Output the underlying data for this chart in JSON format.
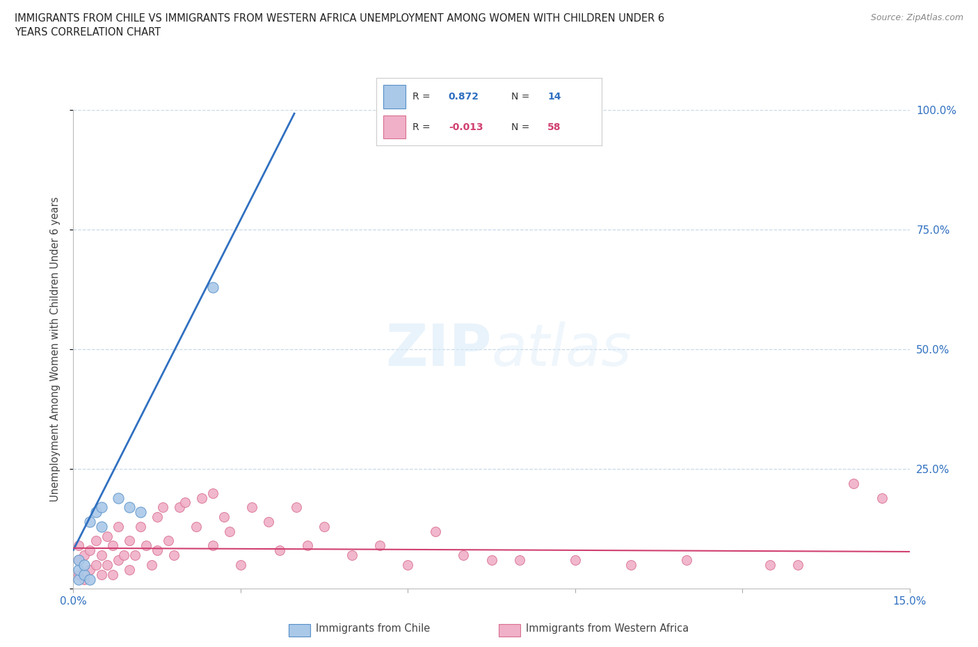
{
  "title_line1": "IMMIGRANTS FROM CHILE VS IMMIGRANTS FROM WESTERN AFRICA UNEMPLOYMENT AMONG WOMEN WITH CHILDREN UNDER 6",
  "title_line2": "YEARS CORRELATION CHART",
  "source": "Source: ZipAtlas.com",
  "ylabel": "Unemployment Among Women with Children Under 6 years",
  "xlim": [
    0.0,
    0.15
  ],
  "ylim": [
    0.0,
    1.0
  ],
  "chile_fill": "#aac8e8",
  "chile_edge": "#5590c8",
  "wa_fill": "#f0b0c8",
  "wa_edge": "#d87090",
  "line_chile": "#3070c0",
  "line_wa": "#d04070",
  "grid_color": "#c8d8e8",
  "legend_R_chile": "0.872",
  "legend_N_chile": "14",
  "legend_R_wa": "-0.013",
  "legend_N_wa": "58",
  "chile_x": [
    0.001,
    0.001,
    0.001,
    0.002,
    0.002,
    0.003,
    0.003,
    0.004,
    0.005,
    0.005,
    0.008,
    0.01,
    0.012,
    0.025
  ],
  "chile_y": [
    0.02,
    0.04,
    0.06,
    0.03,
    0.05,
    0.02,
    0.14,
    0.16,
    0.13,
    0.17,
    0.19,
    0.17,
    0.16,
    0.63
  ],
  "wa_x": [
    0.001,
    0.001,
    0.001,
    0.002,
    0.002,
    0.003,
    0.003,
    0.004,
    0.004,
    0.005,
    0.005,
    0.006,
    0.006,
    0.007,
    0.007,
    0.008,
    0.008,
    0.009,
    0.01,
    0.01,
    0.011,
    0.012,
    0.013,
    0.014,
    0.015,
    0.015,
    0.016,
    0.017,
    0.018,
    0.019,
    0.02,
    0.022,
    0.023,
    0.025,
    0.025,
    0.027,
    0.028,
    0.03,
    0.032,
    0.035,
    0.037,
    0.04,
    0.042,
    0.045,
    0.05,
    0.055,
    0.06,
    0.065,
    0.07,
    0.075,
    0.08,
    0.09,
    0.1,
    0.11,
    0.125,
    0.13,
    0.14,
    0.145
  ],
  "wa_y": [
    0.03,
    0.06,
    0.09,
    0.02,
    0.07,
    0.04,
    0.08,
    0.05,
    0.1,
    0.03,
    0.07,
    0.05,
    0.11,
    0.03,
    0.09,
    0.06,
    0.13,
    0.07,
    0.04,
    0.1,
    0.07,
    0.13,
    0.09,
    0.05,
    0.15,
    0.08,
    0.17,
    0.1,
    0.07,
    0.17,
    0.18,
    0.13,
    0.19,
    0.2,
    0.09,
    0.15,
    0.12,
    0.05,
    0.17,
    0.14,
    0.08,
    0.17,
    0.09,
    0.13,
    0.07,
    0.09,
    0.05,
    0.12,
    0.07,
    0.06,
    0.06,
    0.06,
    0.05,
    0.06,
    0.05,
    0.05,
    0.22,
    0.19
  ]
}
